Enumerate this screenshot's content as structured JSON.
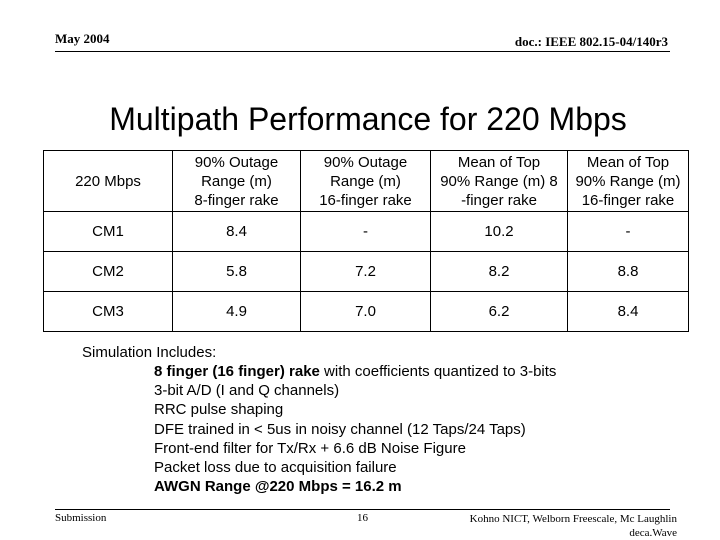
{
  "header": {
    "date": "May 2004",
    "doc_id": "doc.: IEEE 802.15-04/140r3"
  },
  "slide": {
    "title": "Multipath Performance for 220 Mbps"
  },
  "table": {
    "headers": [
      [
        "220 Mbps"
      ],
      [
        "90% Outage",
        "Range (m)",
        "8-finger rake"
      ],
      [
        "90% Outage",
        "Range (m)",
        "16-finger rake"
      ],
      [
        "Mean of Top",
        "90% Range (m) 8",
        "-finger rake"
      ],
      [
        "Mean of Top",
        "90% Range (m)",
        "16-finger rake"
      ]
    ],
    "rows": [
      [
        "CM1",
        "8.4",
        "-",
        "10.2",
        "-"
      ],
      [
        "CM2",
        "5.8",
        "7.2",
        "8.2",
        "8.8"
      ],
      [
        "CM3",
        "4.9",
        "7.0",
        "6.2",
        "8.4"
      ]
    ]
  },
  "simulation": {
    "heading": "Simulation Includes:",
    "items": [
      {
        "bold": "8 finger (16 finger) rake",
        "text": " with coefficients quantized to 3-bits"
      },
      {
        "bold": "",
        "text": "3-bit A/D (I and Q channels)"
      },
      {
        "bold": "",
        "text": "RRC pulse shaping"
      },
      {
        "bold": "",
        "text": "DFE trained in < 5us in noisy channel (12 Taps/24 Taps)"
      },
      {
        "bold": "",
        "text": "Front-end filter for Tx/Rx + 6.6 dB Noise Figure"
      },
      {
        "bold": "",
        "text": "Packet loss due to acquisition failure"
      },
      {
        "bold": "AWGN Range @220 Mbps = 16.2 m",
        "text": ""
      }
    ]
  },
  "footer": {
    "submission": "Submission",
    "page": "16",
    "authors_line1": "Kohno NICT, Welborn Freescale, Mc Laughlin",
    "authors_line2": "deca.Wave"
  }
}
